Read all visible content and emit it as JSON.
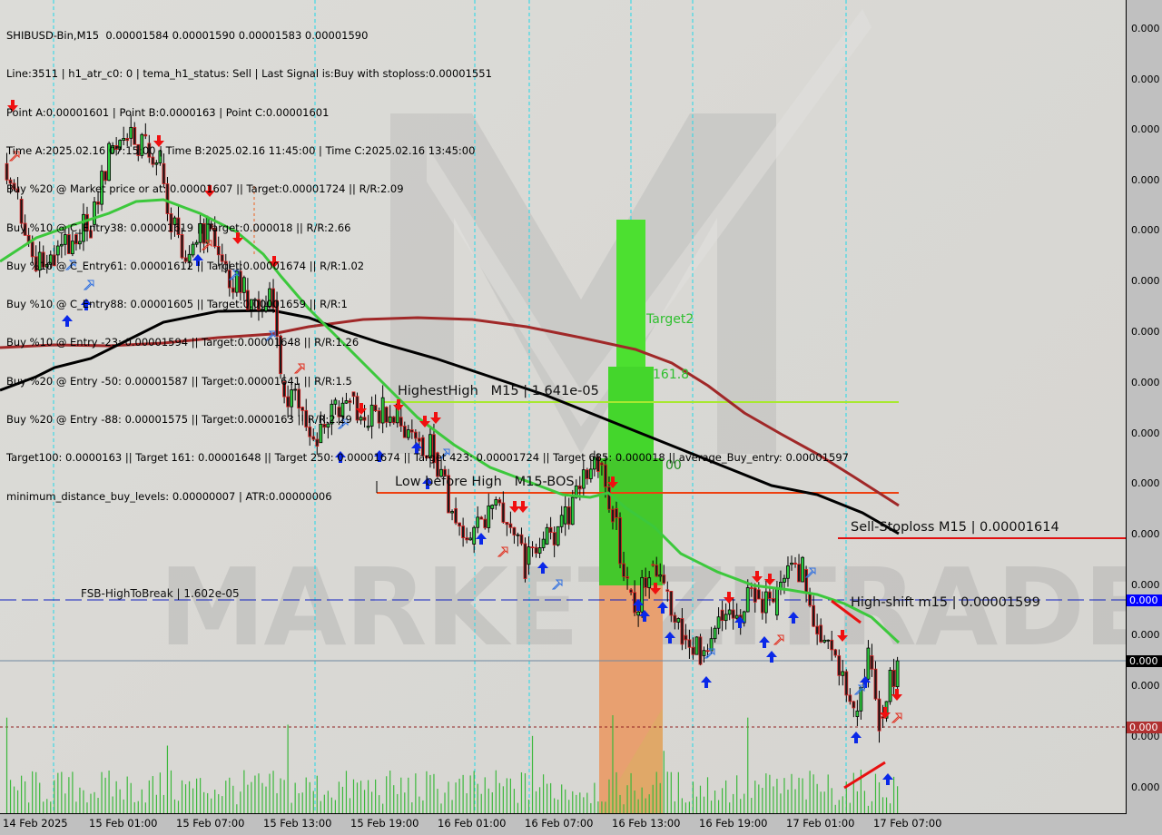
{
  "info_lines": [
    "SHIBUSD-Bin,M15  0.00001584 0.00001590 0.00001583 0.00001590",
    "Line:3511 | h1_atr_c0: 0 | tema_h1_status: Sell | Last Signal is:Buy with stoploss:0.00001551",
    "Point A:0.00001601 | Point B:0.0000163 | Point C:0.00001601",
    "Time A:2025.02.16 07:15:00 | Time B:2025.02.16 11:45:00 | Time C:2025.02.16 13:45:00",
    "Buy %20 @ Market price or at: 0.00001607 || Target:0.00001724 || R/R:2.09",
    "Buy %10 @ C_Entry38: 0.00001619 || Target:0.000018 || R/R:2.66",
    "Buy %10 @ C_Entry61: 0.00001612 || Target:0.00001674 || R/R:1.02",
    "Buy %10 @ C_Entry88: 0.00001605 || Target:0.00001659 || R/R:1",
    "Buy %10 @ Entry -23: 0.00001594 || Target:0.00001648 || R/R:1.26",
    "Buy %20 @ Entry -50: 0.00001587 || Target:0.00001641 || R/R:1.5",
    "Buy %20 @ Entry -88: 0.00001575 || Target:0.0000163 || R/R:2.29",
    "Target100: 0.0000163 || Target 161: 0.00001648 || Target 250: 0.00001674 || Target 423: 0.00001724 || Target 685: 0.000018 || average_Buy_entry: 0.00001597",
    "minimum_distance_buy_levels: 0.00000007 | ATR:0.00000006"
  ],
  "watermark": "MARKETZITRADE",
  "levels": {
    "highest_high": "HighestHigh   M15 | 1.641e-05",
    "low_before_high": "Low before High   M15-BOS",
    "sell_stoploss": "Sell-Stoploss M15 | 0.00001614",
    "high_shift": "High-shift m15 | 0.00001599",
    "fsb": "FSB-HighToBreak | 1.602e-05",
    "target2": "Target2",
    "fib161": "161.8",
    "fib100": "00"
  },
  "colors": {
    "bull": "#2ecc40",
    "bear": "#e02020",
    "ma_fast": "#3cc83c",
    "ma_slow": "#000000",
    "ma_long": "#a02828",
    "target_zone": "#44d62c",
    "entry_zone": "#e8a070",
    "volume": "#3cb83c",
    "price_tag_blue": "#0000ff",
    "price_tag_black": "#000000",
    "price_tag_red": "#b03030"
  },
  "price_axis": {
    "labels": [
      "0.000",
      "0.000",
      "0.000",
      "0.000",
      "0.000",
      "0.000",
      "0.000",
      "0.000",
      "0.000",
      "0.000",
      "0.000",
      "0.000",
      "0.000",
      "0.000",
      "0.000",
      "0.000"
    ],
    "tag_blue": "0.000",
    "tag_black": "0.000",
    "tag_red": "0.000"
  },
  "time_axis": [
    "14 Feb 2025",
    "15 Feb 01:00",
    "15 Feb 07:00",
    "15 Feb 13:00",
    "15 Feb 19:00",
    "16 Feb 01:00",
    "16 Feb 07:00",
    "16 Feb 13:00",
    "16 Feb 19:00",
    "17 Feb 01:00",
    "17 Feb 07:00"
  ],
  "chart_data": {
    "type": "candlestick",
    "symbol": "SHIBUSD-Bin",
    "timeframe": "M15",
    "ylim": [
      1.56e-05,
      1.72e-05
    ],
    "grid": false,
    "x": [
      "2025-02-14T19:00",
      "2025-02-14T20:00",
      "2025-02-14T21:15",
      "2025-02-14T22:30",
      "2025-02-14T23:45",
      "2025-02-15T01:00",
      "2025-02-15T02:15",
      "2025-02-15T03:30",
      "2025-02-15T04:45",
      "2025-02-15T05:45",
      "2025-02-15T06:30",
      "2025-02-15T07:45",
      "2025-02-15T09:00",
      "2025-02-15T10:15",
      "2025-02-15T11:30",
      "2025-02-15T12:45",
      "2025-02-15T13:30",
      "2025-02-15T14:00",
      "2025-02-15T15:15",
      "2025-02-15T16:30",
      "2025-02-15T17:45",
      "2025-02-15T18:45",
      "2025-02-15T19:45",
      "2025-02-15T21:00",
      "2025-02-15T22:00",
      "2025-02-15T23:30",
      "2025-02-16T00:30",
      "2025-02-16T01:45",
      "2025-02-16T03:00",
      "2025-02-16T04:15",
      "2025-02-16T05:30",
      "2025-02-16T06:45",
      "2025-02-16T08:00",
      "2025-02-16T09:15",
      "2025-02-16T10:30",
      "2025-02-16T11:45",
      "2025-02-16T12:45",
      "2025-02-16T13:45",
      "2025-02-16T14:15",
      "2025-02-16T15:15",
      "2025-02-16T16:15",
      "2025-02-16T17:30",
      "2025-02-16T18:45",
      "2025-02-16T20:00",
      "2025-02-16T21:15",
      "2025-02-16T22:30",
      "2025-02-16T23:45",
      "2025-02-17T00:45",
      "2025-02-17T01:45",
      "2025-02-17T02:45",
      "2025-02-17T04:00",
      "2025-02-17T05:15",
      "2025-02-17T06:15",
      "2025-02-17T07:00",
      "2025-02-17T08:15"
    ],
    "close": [
      1.688e-05,
      1.681e-05,
      1.667e-05,
      1.67e-05,
      1.674e-05,
      1.676e-05,
      1.69e-05,
      1.693e-05,
      1.692e-05,
      1.688e-05,
      1.676e-05,
      1.67e-05,
      1.676e-05,
      1.667e-05,
      1.663e-05,
      1.659e-05,
      1.661e-05,
      1.645e-05,
      1.64e-05,
      1.633e-05,
      1.64e-05,
      1.643e-05,
      1.636e-05,
      1.64e-05,
      1.638e-05,
      1.634e-05,
      1.631e-05,
      1.62e-05,
      1.613e-05,
      1.62e-05,
      1.617e-05,
      1.609e-05,
      1.613e-05,
      1.617e-05,
      1.624e-05,
      1.629e-05,
      1.62e-05,
      1.604e-05,
      1.599e-05,
      1.609e-05,
      1.604e-05,
      1.595e-05,
      1.591e-05,
      1.6e-05,
      1.599e-05,
      1.604e-05,
      1.599e-05,
      1.609e-05,
      1.608e-05,
      1.597e-05,
      1.591e-05,
      1.579e-05,
      1.591e-05,
      1.579e-05,
      1.59e-05
    ],
    "horizontal_levels": [
      {
        "label": "HighestHigh M15",
        "value": 1.641e-05
      },
      {
        "label": "Sell-Stoploss M15",
        "value": 1.614e-05
      },
      {
        "label": "FSB-HighToBreak",
        "value": 1.602e-05
      },
      {
        "label": "High-shift m15",
        "value": 1.599e-05
      }
    ]
  }
}
